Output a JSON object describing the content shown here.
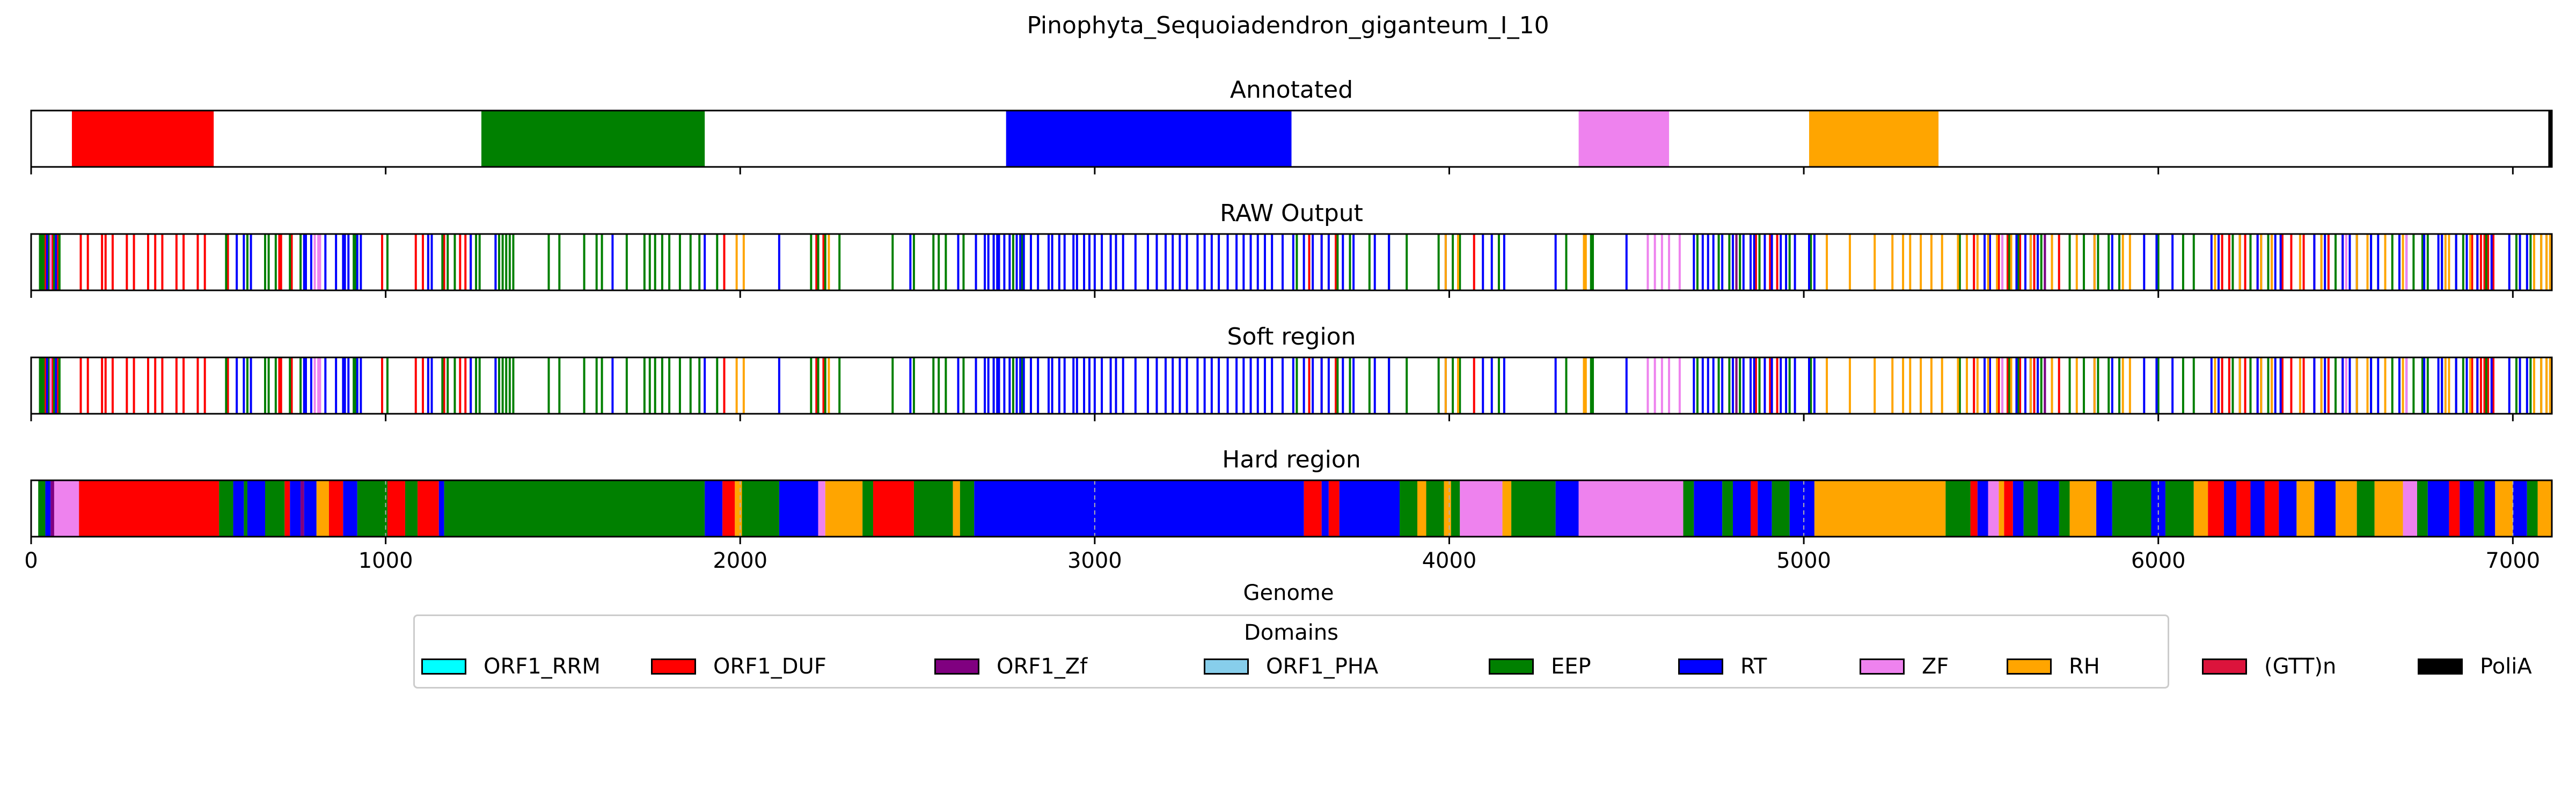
{
  "chart_data": {
    "type": "bar",
    "title": "Pinophyta_Sequoiadendron_giganteum_I_10",
    "xlabel": "Genome",
    "xlim": [
      0,
      7110
    ],
    "xticks": [
      0,
      1000,
      2000,
      3000,
      4000,
      5000,
      6000,
      7000
    ],
    "legend": {
      "title": "Domains",
      "placement": "bottom-center",
      "entries": [
        "ORF1_RRM",
        "ORF1_DUF",
        "ORF1_Zf",
        "ORF1_PHA",
        "EEP",
        "RT",
        "ZF",
        "RH",
        "(GTT)n",
        "PoliA"
      ]
    },
    "colors": {
      "ORF1_RRM": "#00ffff",
      "ORF1_DUF": "#ff0000",
      "ORF1_Zf": "#800080",
      "ORF1_PHA": "#87ceeb",
      "EEP": "#008000",
      "RT": "#0000ff",
      "ZF": "#ee82ee",
      "RH": "#ffa500",
      "(GTT)n": "#dc143c",
      "PoliA": "#000000"
    },
    "panels": [
      {
        "title": "Annotated",
        "kind": "segments",
        "segments": [
          {
            "domain": "ORF1_DUF",
            "start": 115,
            "end": 515
          },
          {
            "domain": "EEP",
            "start": 1270,
            "end": 1900
          },
          {
            "domain": "RT",
            "start": 2750,
            "end": 3555
          },
          {
            "domain": "ZF",
            "start": 4365,
            "end": 4620
          },
          {
            "domain": "RH",
            "start": 5015,
            "end": 5380
          },
          {
            "domain": "PoliA",
            "start": 7100,
            "end": 7110
          }
        ]
      },
      {
        "title": "RAW Output",
        "kind": "lines",
        "lines": {
          "ORF1_DUF": [
            40,
            60,
            75,
            140,
            160,
            200,
            210,
            230,
            270,
            290,
            330,
            350,
            370,
            410,
            430,
            470,
            490,
            555,
            700,
            705,
            735,
            990,
            1085,
            1105,
            1120,
            1165,
            1210,
            1225,
            1240,
            1955,
            2215,
            2235,
            3605,
            3640,
            3680,
            4070,
            4810,
            4850,
            4865,
            4905,
            4925,
            5480,
            5525,
            5550,
            5575,
            5610,
            5650,
            5720,
            6180,
            6200,
            6230,
            6245,
            6280,
            6320,
            6350,
            6375,
            6410,
            6440,
            6480,
            6520,
            6885,
            6900,
            6910,
            6920,
            6930,
            6945
          ],
          "EEP": [
            25,
            30,
            35,
            50,
            65,
            80,
            550,
            610,
            660,
            670,
            690,
            730,
            760,
            910,
            915,
            1005,
            1160,
            1175,
            1195,
            1255,
            1265,
            1310,
            1320,
            1330,
            1340,
            1350,
            1360,
            1460,
            1490,
            1560,
            1595,
            1610,
            1680,
            1730,
            1745,
            1760,
            1780,
            1800,
            1830,
            1860,
            1885,
            1935,
            2200,
            2220,
            2240,
            2280,
            2430,
            2490,
            2545,
            2560,
            2580,
            2630,
            2715,
            2770,
            2795,
            3570,
            3685,
            3720,
            3775,
            3830,
            3880,
            3970,
            4010,
            4030,
            4140,
            4330,
            4400,
            4405,
            4700,
            4760,
            4790,
            4800,
            4820,
            4875,
            4960,
            5020,
            5440,
            5460,
            5560,
            5580,
            5605,
            5640,
            5660,
            5670,
            5750,
            5790,
            5830,
            5860,
            5890,
            6000,
            6070,
            6100,
            6210,
            6260,
            6310,
            6400,
            6460,
            6500,
            6560,
            6600,
            6660,
            6720,
            6745,
            6760,
            6800,
            6840,
            6860,
            6925,
            7010,
            7050,
            7080,
            7095
          ],
          "RT": [
            45,
            70,
            580,
            600,
            620,
            770,
            775,
            790,
            800,
            830,
            860,
            880,
            885,
            895,
            920,
            930,
            1120,
            1130,
            1240,
            1310,
            1640,
            1900,
            2110,
            2480,
            2615,
            2665,
            2690,
            2700,
            2715,
            2725,
            2730,
            2745,
            2760,
            2780,
            2790,
            2800,
            2820,
            2840,
            2870,
            2880,
            2900,
            2915,
            2940,
            2950,
            2970,
            2985,
            3000,
            3020,
            3045,
            3060,
            3080,
            3115,
            3150,
            3175,
            3200,
            3220,
            3240,
            3260,
            3290,
            3310,
            3330,
            3350,
            3375,
            3400,
            3420,
            3440,
            3460,
            3480,
            3500,
            3530,
            3560,
            3590,
            3615,
            3640,
            3660,
            3700,
            3730,
            3790,
            3830,
            3990,
            4095,
            4120,
            4155,
            4300,
            4500,
            4690,
            4715,
            4730,
            4745,
            4770,
            4800,
            4830,
            4850,
            4860,
            4890,
            4910,
            4935,
            4950,
            4975,
            5015,
            5030,
            5510,
            5525,
            5600,
            5625,
            5640,
            5660,
            5680,
            5700,
            5820,
            5870,
            5960,
            5995,
            6040,
            6150,
            6170,
            6230,
            6280,
            6290,
            6330,
            6345,
            6440,
            6470,
            6520,
            6540,
            6560,
            6600,
            6620,
            6680,
            6700,
            6750,
            6790,
            6800,
            6840,
            6870,
            6900,
            6940,
            6990,
            7020,
            7040
          ],
          "ZF": [
            55,
            800,
            810,
            815,
            4560,
            4580,
            4600,
            4620,
            4650,
            5560,
            6530,
            6700
          ],
          "RH": [
            1990,
            2010,
            2250,
            3990,
            4025,
            4380,
            4385,
            5065,
            5130,
            5200,
            5250,
            5280,
            5300,
            5330,
            5360,
            5390,
            5435,
            5460,
            5490,
            5520,
            5545,
            5585,
            5640,
            5700,
            5770,
            5820,
            5900,
            5920,
            6160,
            6230,
            6290,
            6320,
            6400,
            6460,
            6560,
            6590,
            6640,
            6690,
            6810,
            6820,
            6880,
            7060,
            7080,
            7095,
            7105
          ],
          "ORF1_Zf": [
            4810,
            5680
          ]
        }
      },
      {
        "title": "Soft region",
        "kind": "lines",
        "same_as": "RAW Output"
      },
      {
        "title": "Hard region",
        "kind": "segments",
        "segments": [
          {
            "domain": "EEP",
            "start": 20,
            "end": 40
          },
          {
            "domain": "RT",
            "start": 40,
            "end": 55
          },
          {
            "domain": "ORF1_Zf",
            "start": 55,
            "end": 65
          },
          {
            "domain": "ZF",
            "start": 65,
            "end": 135
          },
          {
            "domain": "ORF1_DUF",
            "start": 135,
            "end": 530
          },
          {
            "domain": "EEP",
            "start": 530,
            "end": 570
          },
          {
            "domain": "RT",
            "start": 570,
            "end": 600
          },
          {
            "domain": "EEP",
            "start": 600,
            "end": 610
          },
          {
            "domain": "RT",
            "start": 610,
            "end": 660
          },
          {
            "domain": "EEP",
            "start": 660,
            "end": 715
          },
          {
            "domain": "ORF1_DUF",
            "start": 715,
            "end": 730
          },
          {
            "domain": "RT",
            "start": 730,
            "end": 760
          },
          {
            "domain": "ORF1_Zf",
            "start": 760,
            "end": 770
          },
          {
            "domain": "RT",
            "start": 770,
            "end": 805
          },
          {
            "domain": "RH",
            "start": 805,
            "end": 840
          },
          {
            "domain": "ORF1_DUF",
            "start": 840,
            "end": 880
          },
          {
            "domain": "RT",
            "start": 880,
            "end": 920
          },
          {
            "domain": "EEP",
            "start": 920,
            "end": 1005
          },
          {
            "domain": "ORF1_DUF",
            "start": 1005,
            "end": 1055
          },
          {
            "domain": "EEP",
            "start": 1055,
            "end": 1090
          },
          {
            "domain": "ORF1_DUF",
            "start": 1090,
            "end": 1150
          },
          {
            "domain": "RT",
            "start": 1150,
            "end": 1165
          },
          {
            "domain": "EEP",
            "start": 1165,
            "end": 1900
          },
          {
            "domain": "RT",
            "start": 1900,
            "end": 1950
          },
          {
            "domain": "ORF1_DUF",
            "start": 1950,
            "end": 1985
          },
          {
            "domain": "RH",
            "start": 1985,
            "end": 2005
          },
          {
            "domain": "EEP",
            "start": 2005,
            "end": 2110
          },
          {
            "domain": "RT",
            "start": 2110,
            "end": 2220
          },
          {
            "domain": "ZF",
            "start": 2220,
            "end": 2240
          },
          {
            "domain": "RH",
            "start": 2240,
            "end": 2345
          },
          {
            "domain": "EEP",
            "start": 2345,
            "end": 2375
          },
          {
            "domain": "ORF1_DUF",
            "start": 2375,
            "end": 2490
          },
          {
            "domain": "EEP",
            "start": 2490,
            "end": 2600
          },
          {
            "domain": "RH",
            "start": 2600,
            "end": 2620
          },
          {
            "domain": "EEP",
            "start": 2620,
            "end": 2660
          },
          {
            "domain": "RT",
            "start": 2660,
            "end": 3590
          },
          {
            "domain": "ORF1_DUF",
            "start": 3590,
            "end": 3640
          },
          {
            "domain": "RT",
            "start": 3640,
            "end": 3660
          },
          {
            "domain": "ORF1_DUF",
            "start": 3660,
            "end": 3690
          },
          {
            "domain": "RT",
            "start": 3690,
            "end": 3860
          },
          {
            "domain": "EEP",
            "start": 3860,
            "end": 3910
          },
          {
            "domain": "RH",
            "start": 3910,
            "end": 3935
          },
          {
            "domain": "EEP",
            "start": 3935,
            "end": 3985
          },
          {
            "domain": "RH",
            "start": 3985,
            "end": 4005
          },
          {
            "domain": "EEP",
            "start": 4005,
            "end": 4030
          },
          {
            "domain": "ZF",
            "start": 4030,
            "end": 4150
          },
          {
            "domain": "RH",
            "start": 4150,
            "end": 4175
          },
          {
            "domain": "EEP",
            "start": 4175,
            "end": 4300
          },
          {
            "domain": "RT",
            "start": 4300,
            "end": 4365
          },
          {
            "domain": "ZF",
            "start": 4365,
            "end": 4660
          },
          {
            "domain": "EEP",
            "start": 4660,
            "end": 4690
          },
          {
            "domain": "RT",
            "start": 4690,
            "end": 4770
          },
          {
            "domain": "EEP",
            "start": 4770,
            "end": 4800
          },
          {
            "domain": "RT",
            "start": 4800,
            "end": 4850
          },
          {
            "domain": "ORF1_DUF",
            "start": 4850,
            "end": 4870
          },
          {
            "domain": "RT",
            "start": 4870,
            "end": 4910
          },
          {
            "domain": "EEP",
            "start": 4910,
            "end": 4960
          },
          {
            "domain": "RT",
            "start": 4960,
            "end": 5030
          },
          {
            "domain": "RH",
            "start": 5030,
            "end": 5400
          },
          {
            "domain": "EEP",
            "start": 5400,
            "end": 5470
          },
          {
            "domain": "ORF1_DUF",
            "start": 5470,
            "end": 5490
          },
          {
            "domain": "RT",
            "start": 5490,
            "end": 5520
          },
          {
            "domain": "ZF",
            "start": 5520,
            "end": 5550
          },
          {
            "domain": "RH",
            "start": 5550,
            "end": 5565
          },
          {
            "domain": "ORF1_DUF",
            "start": 5565,
            "end": 5590
          },
          {
            "domain": "RT",
            "start": 5590,
            "end": 5620
          },
          {
            "domain": "EEP",
            "start": 5620,
            "end": 5660
          },
          {
            "domain": "RT",
            "start": 5660,
            "end": 5720
          },
          {
            "domain": "EEP",
            "start": 5720,
            "end": 5750
          },
          {
            "domain": "RH",
            "start": 5750,
            "end": 5825
          },
          {
            "domain": "RT",
            "start": 5825,
            "end": 5870
          },
          {
            "domain": "EEP",
            "start": 5870,
            "end": 5980
          },
          {
            "domain": "RT",
            "start": 5980,
            "end": 6020
          },
          {
            "domain": "EEP",
            "start": 6020,
            "end": 6100
          },
          {
            "domain": "RH",
            "start": 6100,
            "end": 6140
          },
          {
            "domain": "ORF1_DUF",
            "start": 6140,
            "end": 6185
          },
          {
            "domain": "RT",
            "start": 6185,
            "end": 6220
          },
          {
            "domain": "ORF1_DUF",
            "start": 6220,
            "end": 6260
          },
          {
            "domain": "RT",
            "start": 6260,
            "end": 6300
          },
          {
            "domain": "ORF1_DUF",
            "start": 6300,
            "end": 6340
          },
          {
            "domain": "RT",
            "start": 6340,
            "end": 6390
          },
          {
            "domain": "RH",
            "start": 6390,
            "end": 6440
          },
          {
            "domain": "RT",
            "start": 6440,
            "end": 6500
          },
          {
            "domain": "RH",
            "start": 6500,
            "end": 6560
          },
          {
            "domain": "EEP",
            "start": 6560,
            "end": 6610
          },
          {
            "domain": "RH",
            "start": 6610,
            "end": 6690
          },
          {
            "domain": "ZF",
            "start": 6690,
            "end": 6730
          },
          {
            "domain": "EEP",
            "start": 6730,
            "end": 6760
          },
          {
            "domain": "RT",
            "start": 6760,
            "end": 6820
          },
          {
            "domain": "ORF1_DUF",
            "start": 6820,
            "end": 6850
          },
          {
            "domain": "RT",
            "start": 6850,
            "end": 6890
          },
          {
            "domain": "EEP",
            "start": 6890,
            "end": 6920
          },
          {
            "domain": "RT",
            "start": 6920,
            "end": 6950
          },
          {
            "domain": "RH",
            "start": 6950,
            "end": 7000
          },
          {
            "domain": "RT",
            "start": 7000,
            "end": 7040
          },
          {
            "domain": "EEP",
            "start": 7040,
            "end": 7070
          },
          {
            "domain": "RH",
            "start": 7070,
            "end": 7110
          }
        ]
      }
    ]
  }
}
